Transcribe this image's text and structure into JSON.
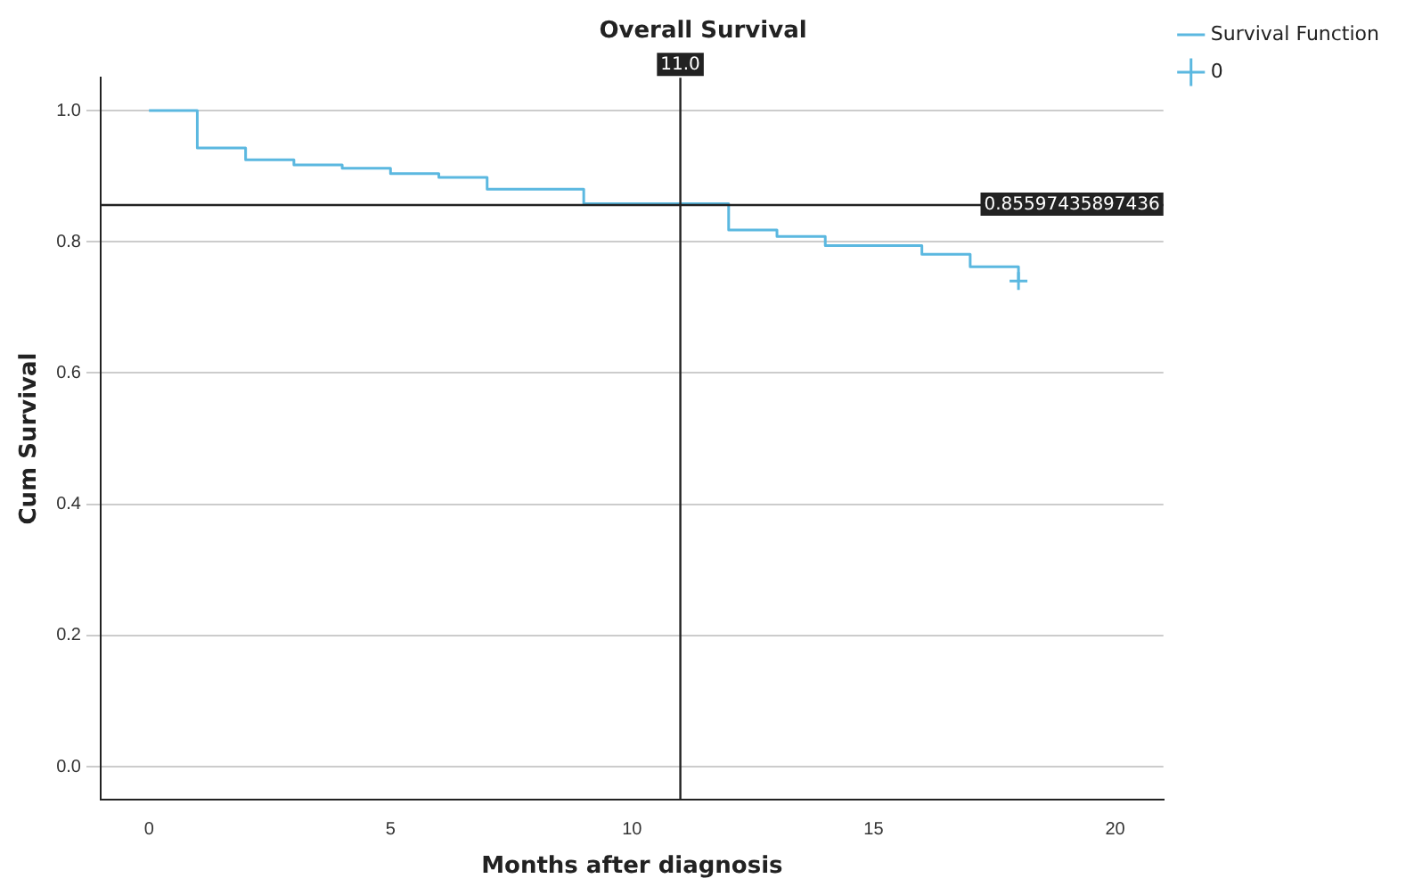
{
  "chart_data": {
    "type": "step",
    "title": "Overall Survival",
    "xlabel": "Months after diagnosis",
    "ylabel": "Cum Survival",
    "series": [
      {
        "name": "Survival Function",
        "color": "#5bb8e0",
        "x": [
          0,
          1,
          2,
          3,
          4,
          5,
          6,
          7,
          9,
          12,
          13,
          14,
          16,
          17,
          18
        ],
        "values": [
          1,
          0.943,
          0.925,
          0.917,
          0.912,
          0.904,
          0.898,
          0.88,
          0.858,
          0.818,
          0.808,
          0.794,
          0.781,
          0.762,
          0.74
        ],
        "marker": "none"
      },
      {
        "name": "0",
        "type": "scatter",
        "color": "#5bb8e0",
        "x": [
          18
        ],
        "values": [
          0.74
        ],
        "marker": "cross"
      }
    ],
    "xlim": [
      -1,
      21
    ],
    "xticks": [
      0,
      5,
      10,
      15,
      20
    ],
    "ylim": [
      -0.05,
      1.05
    ],
    "yticks": [
      {
        "value": 0,
        "label": "0.0"
      },
      {
        "value": 0.2,
        "label": "0.2"
      },
      {
        "value": 0.4,
        "label": "0.4"
      },
      {
        "value": 0.6,
        "label": "0.6"
      },
      {
        "value": 0.8,
        "label": "0.8"
      },
      {
        "value": 1,
        "label": "1.0"
      }
    ],
    "grid": "y",
    "legend": "top right",
    "ref_lines": [
      {
        "axis": "x",
        "value": 11,
        "label": "11.0",
        "color": "#222222"
      },
      {
        "axis": "y",
        "value": 0.85597435897436,
        "label": "0.85597435897436",
        "color": "#222222"
      }
    ]
  }
}
